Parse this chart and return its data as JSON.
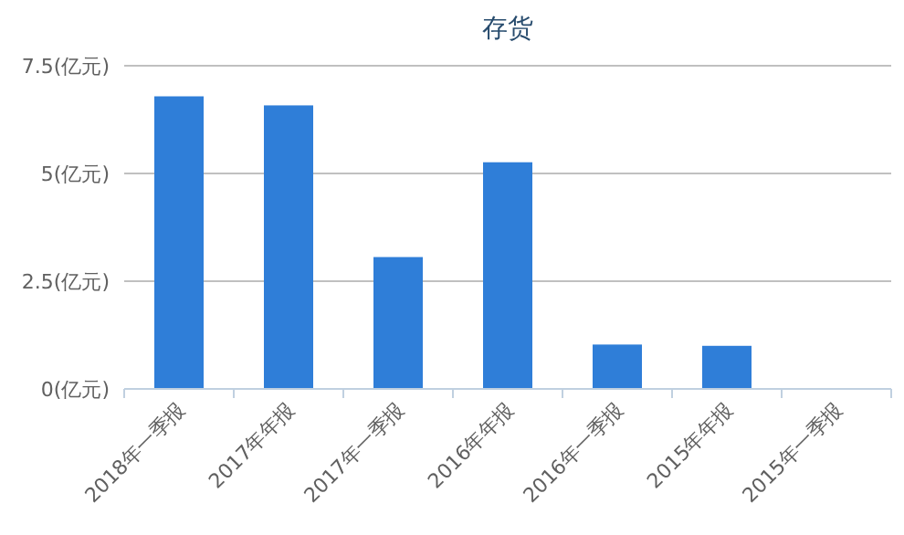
{
  "chart_data": {
    "type": "bar",
    "title": "存货",
    "categories": [
      "2018年一季报",
      "2017年年报",
      "2017年一季报",
      "2016年年报",
      "2016年一季报",
      "2015年年报",
      "2015年一季报"
    ],
    "series": [
      {
        "color": "#2f7ed8",
        "values": [
          6.79,
          6.58,
          3.06,
          5.26,
          1.03,
          1.0,
          null
        ]
      }
    ],
    "ylim": [
      0,
      7.5
    ],
    "yticks": [
      {
        "value": 0,
        "label": "0(亿元)"
      },
      {
        "value": 2.5,
        "label": "2.5(亿元)"
      },
      {
        "value": 5,
        "label": "5(亿元)"
      },
      {
        "value": 7.5,
        "label": "7.5(亿元)"
      }
    ],
    "grid": "y"
  }
}
